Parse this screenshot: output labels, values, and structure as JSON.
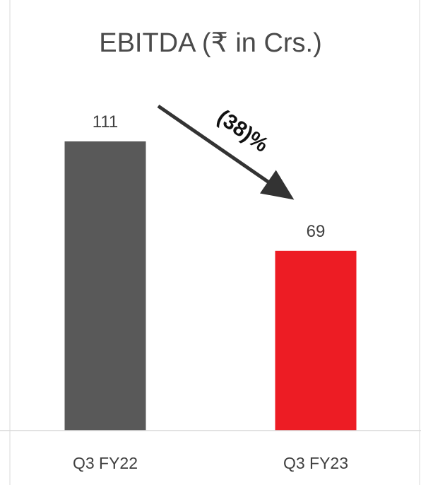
{
  "chart_data": {
    "type": "bar",
    "title": "EBITDA (₹ in Crs.)",
    "categories": [
      "Q3 FY22",
      "Q3 FY23"
    ],
    "values": [
      111,
      69
    ],
    "value_labels": [
      "111",
      "69"
    ],
    "bar_colors": [
      "#595959",
      "#ed1c24"
    ],
    "ylim": [
      0,
      111
    ],
    "grid": false,
    "annotation": {
      "text": "(38)%",
      "color": "#333333"
    }
  }
}
